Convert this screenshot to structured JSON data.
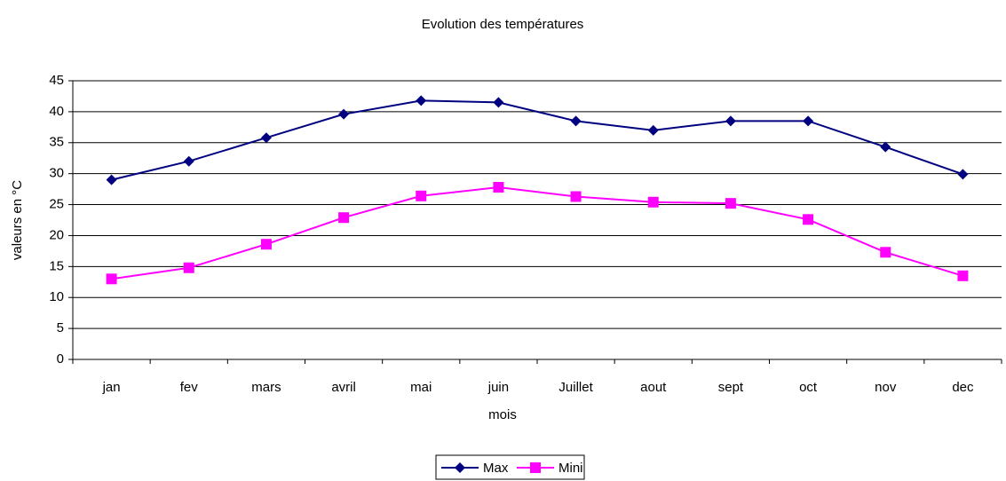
{
  "chart_data": {
    "type": "line",
    "title": "Evolution des températures",
    "x_label": "mois",
    "y_label": "valeurs en °C",
    "categories": [
      "jan",
      "fev",
      "mars",
      "avril",
      "mai",
      "juin",
      "Juillet",
      "aout",
      "sept",
      "oct",
      "nov",
      "dec"
    ],
    "series": [
      {
        "name": "Max",
        "color": "#000080",
        "marker": "diamond",
        "values": [
          29,
          32,
          35.8,
          39.6,
          41.8,
          41.5,
          38.5,
          37,
          38.5,
          38.5,
          34.3,
          29.9
        ]
      },
      {
        "name": "Mini",
        "color": "#ff00ff",
        "marker": "square",
        "values": [
          13,
          14.8,
          18.6,
          22.9,
          26.4,
          27.8,
          26.3,
          25.4,
          25.2,
          22.6,
          17.3,
          13.5
        ]
      }
    ],
    "ylim": [
      0,
      45
    ],
    "yticks": [
      0,
      5,
      10,
      15,
      20,
      25,
      30,
      35,
      40,
      45
    ],
    "grid": true,
    "legend": "bottom"
  }
}
